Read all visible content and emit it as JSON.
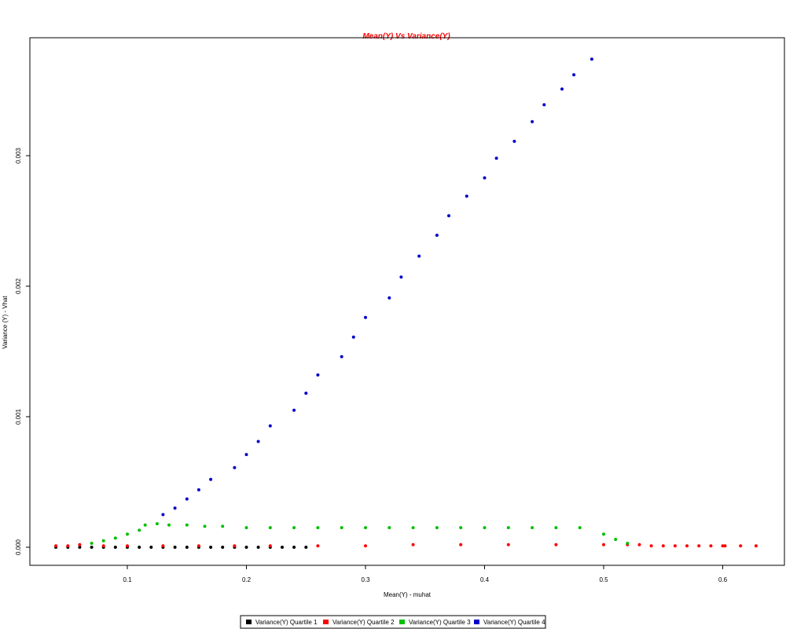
{
  "chart_data": {
    "type": "scatter",
    "title": "Mean(Y) Vs Variance(Y)",
    "title_color": "#ff0000",
    "xlabel": "Mean(Y) - muhat",
    "ylabel": "Variance (Y) - Vhat",
    "xlim": [
      0.035,
      0.65
    ],
    "ylim": [
      -0.00015,
      0.0039
    ],
    "x_ticks": [
      {
        "value": 0.1,
        "label": "0.1"
      },
      {
        "value": 0.2,
        "label": "0.2"
      },
      {
        "value": 0.3,
        "label": "0.3"
      },
      {
        "value": 0.4,
        "label": "0.4"
      },
      {
        "value": 0.5,
        "label": "0.5"
      },
      {
        "value": 0.6,
        "label": "0.6"
      }
    ],
    "y_ticks": [
      {
        "value": 0.0,
        "label": "0.000"
      },
      {
        "value": 0.001,
        "label": "0.001"
      },
      {
        "value": 0.002,
        "label": "0.002"
      },
      {
        "value": 0.003,
        "label": "0.003"
      }
    ],
    "grid": false,
    "legend_position": "bottom-center",
    "series": [
      {
        "name": "Variance(Y) Quartile 1",
        "color": "#000000",
        "points": [
          [
            0.04,
            0.0
          ],
          [
            0.05,
            0.0
          ],
          [
            0.06,
            0.0
          ],
          [
            0.07,
            0.0
          ],
          [
            0.08,
            0.0
          ],
          [
            0.09,
            0.0
          ],
          [
            0.1,
            0.0
          ],
          [
            0.11,
            0.0
          ],
          [
            0.12,
            0.0
          ],
          [
            0.13,
            0.0
          ],
          [
            0.14,
            0.0
          ],
          [
            0.15,
            0.0
          ],
          [
            0.16,
            0.0
          ],
          [
            0.17,
            0.0
          ],
          [
            0.18,
            0.0
          ],
          [
            0.19,
            0.0
          ],
          [
            0.2,
            0.0
          ],
          [
            0.21,
            0.0
          ],
          [
            0.22,
            0.0
          ],
          [
            0.23,
            0.0
          ],
          [
            0.24,
            0.0
          ],
          [
            0.25,
            0.0
          ]
        ]
      },
      {
        "name": "Variance(Y) Quartile 2",
        "color": "#ff0000",
        "points": [
          [
            0.04,
            1e-05
          ],
          [
            0.05,
            1e-05
          ],
          [
            0.06,
            2e-05
          ],
          [
            0.08,
            1e-05
          ],
          [
            0.1,
            1e-05
          ],
          [
            0.13,
            1e-05
          ],
          [
            0.16,
            1e-05
          ],
          [
            0.19,
            1e-05
          ],
          [
            0.22,
            1e-05
          ],
          [
            0.26,
            1e-05
          ],
          [
            0.3,
            1e-05
          ],
          [
            0.34,
            2e-05
          ],
          [
            0.38,
            2e-05
          ],
          [
            0.42,
            2e-05
          ],
          [
            0.46,
            2e-05
          ],
          [
            0.5,
            2e-05
          ],
          [
            0.52,
            2e-05
          ],
          [
            0.53,
            2e-05
          ],
          [
            0.54,
            1e-05
          ],
          [
            0.55,
            1e-05
          ],
          [
            0.56,
            1e-05
          ],
          [
            0.57,
            1e-05
          ],
          [
            0.58,
            1e-05
          ],
          [
            0.59,
            1e-05
          ],
          [
            0.6,
            1e-05
          ],
          [
            0.602,
            1e-05
          ],
          [
            0.615,
            1e-05
          ],
          [
            0.628,
            1e-05
          ]
        ]
      },
      {
        "name": "Variance(Y) Quartile 3",
        "color": "#00c000",
        "points": [
          [
            0.07,
            3e-05
          ],
          [
            0.08,
            5e-05
          ],
          [
            0.09,
            7e-05
          ],
          [
            0.1,
            0.0001
          ],
          [
            0.11,
            0.00013
          ],
          [
            0.115,
            0.00017
          ],
          [
            0.125,
            0.00018
          ],
          [
            0.135,
            0.00017
          ],
          [
            0.15,
            0.00017
          ],
          [
            0.165,
            0.00016
          ],
          [
            0.18,
            0.00016
          ],
          [
            0.2,
            0.00015
          ],
          [
            0.22,
            0.00015
          ],
          [
            0.24,
            0.00015
          ],
          [
            0.26,
            0.00015
          ],
          [
            0.28,
            0.00015
          ],
          [
            0.3,
            0.00015
          ],
          [
            0.32,
            0.00015
          ],
          [
            0.34,
            0.00015
          ],
          [
            0.36,
            0.00015
          ],
          [
            0.38,
            0.00015
          ],
          [
            0.4,
            0.00015
          ],
          [
            0.42,
            0.00015
          ],
          [
            0.44,
            0.00015
          ],
          [
            0.46,
            0.00015
          ],
          [
            0.48,
            0.00015
          ],
          [
            0.5,
            0.0001
          ],
          [
            0.51,
            6e-05
          ],
          [
            0.52,
            3e-05
          ]
        ]
      },
      {
        "name": "Variance(Y) Quartile 4",
        "color": "#0000cc",
        "points": [
          [
            0.13,
            0.00025
          ],
          [
            0.14,
            0.0003
          ],
          [
            0.15,
            0.00037
          ],
          [
            0.16,
            0.00044
          ],
          [
            0.17,
            0.00052
          ],
          [
            0.19,
            0.00061
          ],
          [
            0.2,
            0.00071
          ],
          [
            0.21,
            0.00081
          ],
          [
            0.22,
            0.00093
          ],
          [
            0.24,
            0.00105
          ],
          [
            0.25,
            0.00118
          ],
          [
            0.26,
            0.00132
          ],
          [
            0.28,
            0.00146
          ],
          [
            0.29,
            0.00161
          ],
          [
            0.3,
            0.00176
          ],
          [
            0.32,
            0.00191
          ],
          [
            0.33,
            0.00207
          ],
          [
            0.345,
            0.00223
          ],
          [
            0.36,
            0.00239
          ],
          [
            0.37,
            0.00254
          ],
          [
            0.385,
            0.00269
          ],
          [
            0.4,
            0.00283
          ],
          [
            0.41,
            0.00298
          ],
          [
            0.425,
            0.00311
          ],
          [
            0.44,
            0.00326
          ],
          [
            0.45,
            0.00339
          ],
          [
            0.465,
            0.00351
          ],
          [
            0.475,
            0.00362
          ],
          [
            0.49,
            0.00374
          ]
        ]
      }
    ]
  }
}
